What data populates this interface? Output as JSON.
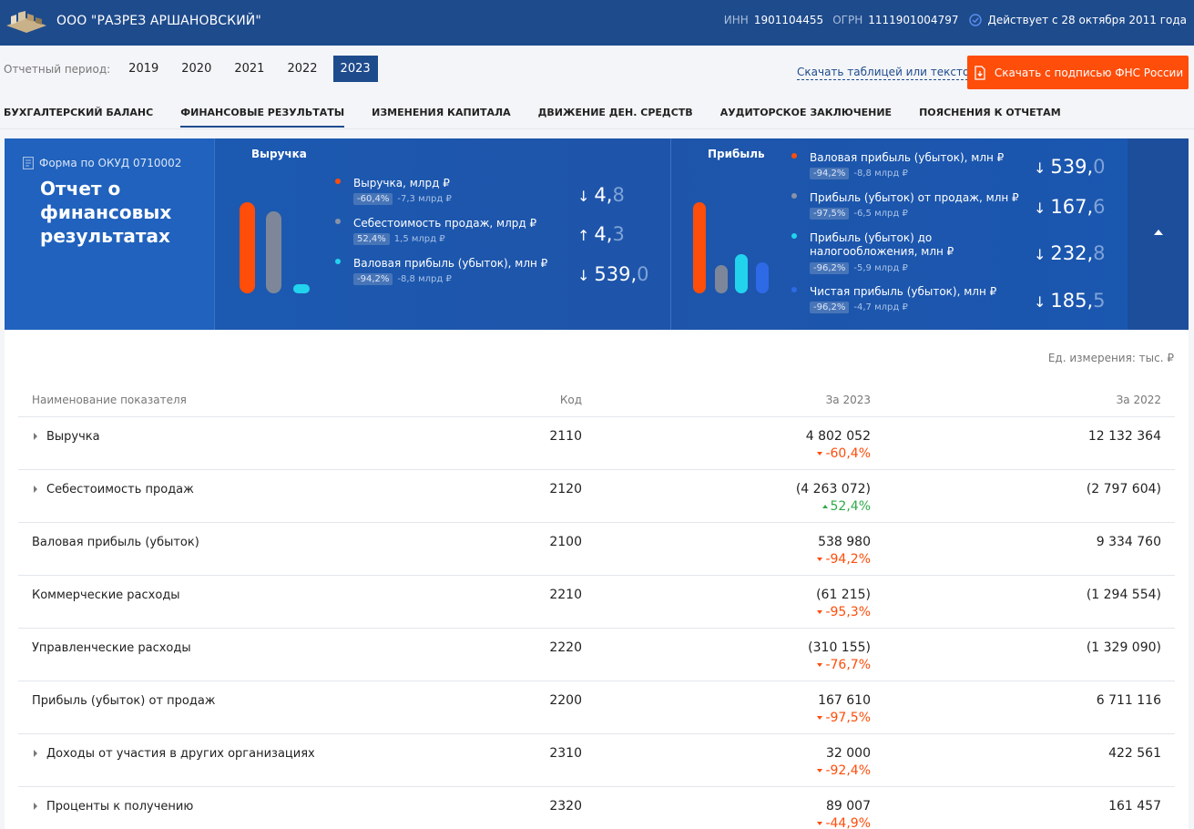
{
  "header": {
    "company": "ООО \"РАЗРЕЗ АРШАНОВСКИЙ\"",
    "inn_label": "ИНН",
    "inn": "1901104455",
    "ogrn_label": "ОГРН",
    "ogrn": "1111901004797",
    "status": "Действует с 28 октября 2011 года"
  },
  "period": {
    "label": "Отчетный период:",
    "years": [
      "2019",
      "2020",
      "2021",
      "2022",
      "2023"
    ],
    "active": "2023"
  },
  "downloads": {
    "link": "Скачать таблицей или текстом",
    "button": "Скачать с подписью ФНС России"
  },
  "tabs": [
    "БУХГАЛТЕРСКИЙ БАЛАНС",
    "ФИНАНСОВЫЕ РЕЗУЛЬТАТЫ",
    "ИЗМЕНЕНИЯ КАПИТАЛА",
    "ДВИЖЕНИЕ ДЕН. СРЕДСТВ",
    "АУДИТОРСКОЕ ЗАКЛЮЧЕНИЕ",
    "ПОЯСНЕНИЯ К ОТЧЕТАМ"
  ],
  "hero": {
    "okud": "Форма по ОКУД 0710002",
    "title": "Отчет о финансовых результатах",
    "revenue": {
      "title": "Выручка",
      "items": [
        {
          "label": "Выручка, млрд ₽",
          "badge": "-60,4%",
          "delta": "-7,3 млрд ₽",
          "arrow": "↓",
          "int": "4,",
          "frac": "8",
          "color": "#ff4d0a"
        },
        {
          "label": "Себестоимость продаж, млрд ₽",
          "badge": "52,4%",
          "delta": "1,5 млрд ₽",
          "arrow": "↑",
          "int": "4,",
          "frac": "3",
          "color": "#8a93a6"
        },
        {
          "label": "Валовая прибыль (убыток), млн ₽",
          "badge": "-94,2%",
          "delta": "-8,8 млрд ₽",
          "arrow": "↓",
          "int": "539,",
          "frac": "0",
          "color": "#22d3ee"
        }
      ]
    },
    "profit": {
      "title": "Прибыль",
      "items": [
        {
          "label": "Валовая прибыль (убыток), млн ₽",
          "badge": "-94,2%",
          "delta": "-8,8 млрд ₽",
          "arrow": "↓",
          "int": "539,",
          "frac": "0",
          "color": "#ff4d0a"
        },
        {
          "label": "Прибыль (убыток) от продаж, млн ₽",
          "badge": "-97,5%",
          "delta": "-6,5 млрд ₽",
          "arrow": "↓",
          "int": "167,",
          "frac": "6",
          "color": "#8a93a6"
        },
        {
          "label": "Прибыль (убыток) до налогообложения, млн ₽",
          "badge": "-96,2%",
          "delta": "-5,9 млрд ₽",
          "arrow": "↓",
          "int": "232,",
          "frac": "8",
          "color": "#22d3ee"
        },
        {
          "label": "Чистая прибыль (убыток), млн ₽",
          "badge": "-96,2%",
          "delta": "-4,7 млрд ₽",
          "arrow": "↓",
          "int": "185,",
          "frac": "5",
          "color": "#2e6ae6"
        }
      ]
    }
  },
  "table": {
    "unit": "Ед. измерения: тыс. ₽",
    "headers": {
      "name": "Наименование показателя",
      "code": "Код",
      "y2023": "За 2023",
      "y2022": "За 2022"
    },
    "rows": [
      {
        "name": "Выручка",
        "expandable": true,
        "code": "2110",
        "v2023": "4 802 052",
        "change": "-60,4%",
        "dir": "neg",
        "v2022": "12 132 364"
      },
      {
        "name": "Себестоимость продаж",
        "expandable": true,
        "code": "2120",
        "v2023": "(4 263 072)",
        "change": "52,4%",
        "dir": "pos",
        "v2022": "(2 797 604)"
      },
      {
        "name": "Валовая прибыль (убыток)",
        "expandable": false,
        "code": "2100",
        "v2023": "538 980",
        "change": "-94,2%",
        "dir": "neg",
        "v2022": "9 334 760"
      },
      {
        "name": "Коммерческие расходы",
        "expandable": false,
        "code": "2210",
        "v2023": "(61 215)",
        "change": "-95,3%",
        "dir": "neg",
        "v2022": "(1 294 554)"
      },
      {
        "name": "Управленческие расходы",
        "expandable": false,
        "code": "2220",
        "v2023": "(310 155)",
        "change": "-76,7%",
        "dir": "neg",
        "v2022": "(1 329 090)"
      },
      {
        "name": "Прибыль (убыток) от продаж",
        "expandable": false,
        "code": "2200",
        "v2023": "167 610",
        "change": "-97,5%",
        "dir": "neg",
        "v2022": "6 711 116"
      },
      {
        "name": "Доходы от участия в других организациях",
        "expandable": true,
        "code": "2310",
        "v2023": "32 000",
        "change": "-92,4%",
        "dir": "neg",
        "v2022": "422 561"
      },
      {
        "name": "Проценты к получению",
        "expandable": true,
        "code": "2320",
        "v2023": "89 007",
        "change": "-44,9%",
        "dir": "neg",
        "v2022": "161 457"
      }
    ]
  }
}
